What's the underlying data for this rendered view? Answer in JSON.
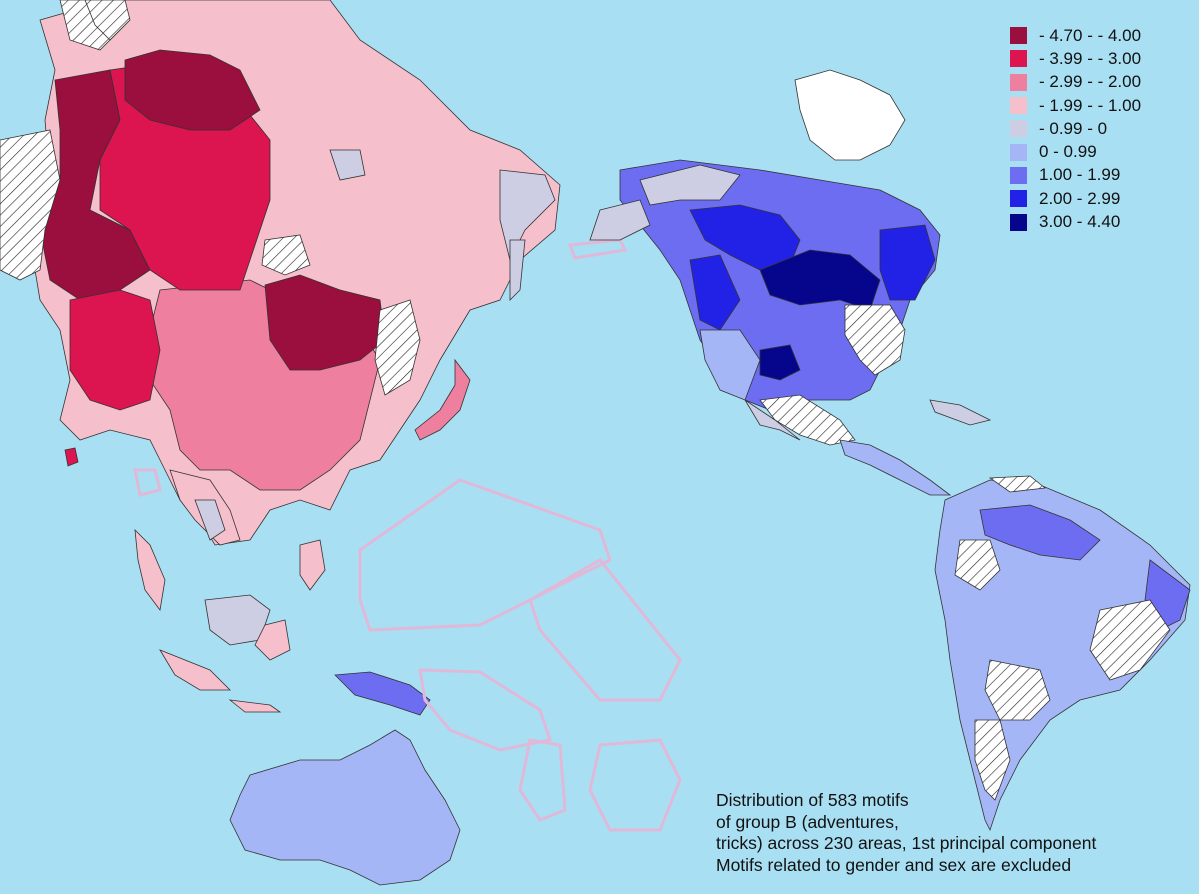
{
  "legend": {
    "items": [
      {
        "label": "- 4.70 - - 4.00",
        "color": "#9b0f3e"
      },
      {
        "label": "- 3.99 - - 3.00",
        "color": "#dc1450"
      },
      {
        "label": "- 2.99 - - 2.00",
        "color": "#ef7f9f"
      },
      {
        "label": "- 1.99 - - 1.00",
        "color": "#f6bfcc"
      },
      {
        "label": "- 0.99 - 0",
        "color": "#cdcde3"
      },
      {
        "label": "0 - 0.99",
        "color": "#a4b6f5"
      },
      {
        "label": "1.00 - 1.99",
        "color": "#6d6df2"
      },
      {
        "label": "2.00 - 2.99",
        "color": "#2222e6"
      },
      {
        "label": "3.00 - 4.40",
        "color": "#06068d"
      }
    ]
  },
  "caption": {
    "lines": [
      "Distribution of 583 motifs",
      "of group B (adventures,",
      "tricks) across 230 areas, 1st principal component",
      "Motifs related to gender and sex are excluded"
    ]
  },
  "colors": {
    "ocean": "#a9dff3",
    "no_data_fill": "#ffffff",
    "land_outline": "#222222",
    "oceania_outline": "#e0b8d8"
  }
}
